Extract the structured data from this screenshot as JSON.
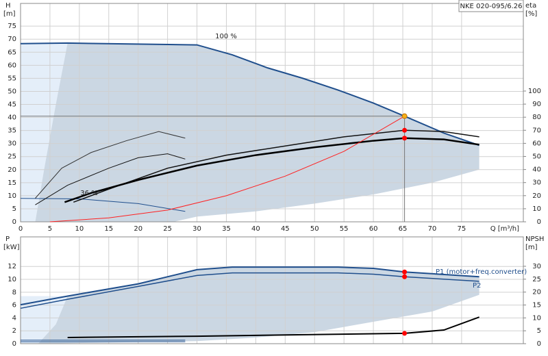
{
  "chart_data": [
    {
      "type": "line",
      "title": "NKE 020-095/6.26",
      "y_label": "H",
      "y_unit": "[m]",
      "y2_label": "eta",
      "y2_unit": "[%]",
      "x_label": "Q [m³/h]",
      "annotations": [
        "100 %",
        "36 %"
      ],
      "xlim": [
        0,
        85.5
      ],
      "xticks": [
        0,
        5,
        10,
        15,
        20,
        25,
        30,
        35,
        40,
        45,
        50,
        55,
        60,
        65,
        70,
        75
      ],
      "ylim": [
        0,
        83.7
      ],
      "yticks": [
        0,
        5,
        10,
        15,
        20,
        25,
        30,
        35,
        40,
        45,
        50,
        55,
        60,
        65,
        70,
        75
      ],
      "y2lim": [
        0,
        167
      ],
      "y2ticks": [
        0,
        10,
        20,
        30,
        40,
        50,
        60,
        70,
        80,
        90,
        100
      ],
      "grid": true,
      "series": [
        {
          "kind": "area",
          "color": "#e4eef9",
          "x": [
            0,
            0,
            8,
            6,
            4,
            2.5
          ],
          "values": [
            0,
            68.3,
            68.3,
            45,
            20,
            0
          ]
        },
        {
          "kind": "area",
          "color": "#cbd7e3",
          "x": [
            2.5,
            4,
            6,
            8,
            30,
            36,
            42,
            48,
            54,
            60,
            65.3,
            72,
            78,
            78,
            70,
            60,
            50,
            40,
            30,
            26,
            2.5
          ],
          "values": [
            0,
            20,
            45,
            68.5,
            67.8,
            64,
            59,
            55,
            50.5,
            45.5,
            40.5,
            34,
            29.3,
            20,
            15,
            10.5,
            7,
            4,
            2,
            0,
            0
          ]
        },
        {
          "color": "#1f4e8c",
          "width": 2,
          "x": [
            0,
            8,
            30,
            36,
            42,
            48,
            54,
            60,
            65.3,
            72,
            78
          ],
          "values": [
            68.3,
            68.5,
            67.8,
            64,
            59,
            55,
            50.5,
            45.5,
            40.5,
            34,
            29.3
          ]
        },
        {
          "color": "#1f4e8c",
          "width": 1,
          "x": [
            0,
            10,
            20,
            28
          ],
          "values": [
            9,
            8.8,
            7,
            4
          ]
        },
        {
          "color": "#333333",
          "width": 1,
          "axis": "y2",
          "x": [
            2.5,
            7,
            12,
            18,
            23.5,
            28
          ],
          "values": [
            18,
            41,
            53,
            62,
            69,
            64
          ]
        },
        {
          "color": "#111111",
          "width": 1,
          "axis": "y2",
          "x": [
            2.5,
            8,
            15,
            20,
            25,
            28
          ],
          "values": [
            13,
            28,
            41,
            49,
            52,
            48
          ]
        },
        {
          "color": "#111111",
          "width": 1.5,
          "axis": "y2",
          "x": [
            9,
            15,
            25,
            35,
            45,
            55,
            65.3,
            72,
            78
          ],
          "values": [
            15,
            25,
            41,
            51,
            58,
            65,
            70,
            69,
            65
          ]
        },
        {
          "color": "#000000",
          "width": 2.5,
          "axis": "y2",
          "x": [
            7.5,
            12,
            20,
            30,
            40,
            50,
            60,
            65.3,
            72,
            78
          ],
          "values": [
            15,
            22,
            32,
            43,
            51,
            57,
            62,
            64,
            63,
            59
          ]
        },
        {
          "color": "#ff2020",
          "width": 1,
          "x": [
            5,
            15,
            25,
            35,
            45,
            55,
            65.3
          ],
          "values": [
            0,
            1.5,
            4.5,
            10,
            17.5,
            27,
            40.5
          ]
        },
        {
          "kind": "marker",
          "droplines": true,
          "color": "#f5b01a",
          "x": [
            65.3
          ],
          "values": [
            40.5
          ]
        },
        {
          "kind": "marker",
          "color": "#ff0000",
          "axis": "y2",
          "x": [
            65.3,
            65.3
          ],
          "values": [
            70,
            64
          ]
        }
      ]
    },
    {
      "type": "line",
      "y_label": "P",
      "y_unit": "[kW]",
      "y2_label": "NPSH",
      "y2_unit": "[m]",
      "annotations": [
        "P1 (motor+freq.converter)",
        "P2"
      ],
      "xlim": [
        0,
        85.5
      ],
      "ylim": [
        0,
        16.6
      ],
      "yticks": [
        0,
        2,
        4,
        6,
        8,
        10,
        12
      ],
      "y2lim": [
        0,
        41.4
      ],
      "y2ticks": [
        0,
        5,
        10,
        15,
        20,
        25,
        30
      ],
      "grid": true,
      "series": [
        {
          "kind": "area",
          "color": "#e4eef9",
          "x": [
            0,
            0,
            8,
            6,
            3
          ],
          "values": [
            0,
            7.4,
            7.4,
            3,
            0
          ]
        },
        {
          "kind": "area",
          "color": "#cbd7e3",
          "x": [
            3,
            6,
            8,
            20,
            30,
            36,
            54,
            60,
            65.3,
            78,
            78,
            70,
            60,
            50,
            40,
            30,
            3
          ],
          "values": [
            0,
            3,
            7.4,
            9.3,
            11.5,
            11.9,
            11.9,
            11.7,
            11.15,
            10.4,
            7.6,
            5,
            3.4,
            1.8,
            0.95,
            0.4,
            0
          ]
        },
        {
          "color": "#1f4e8c",
          "width": 2,
          "x": [
            0,
            8,
            20,
            30,
            36,
            54,
            60,
            65.3,
            78
          ],
          "values": [
            6.05,
            7.4,
            9.3,
            11.5,
            11.9,
            11.9,
            11.7,
            11.15,
            10.4
          ]
        },
        {
          "color": "#1f4e8c",
          "width": 1.5,
          "x": [
            0,
            8,
            20,
            30,
            36,
            54,
            60,
            65.3,
            78
          ],
          "values": [
            5.5,
            6.9,
            8.9,
            10.6,
            11,
            11,
            10.8,
            10.4,
            9.7
          ]
        },
        {
          "color": "#1f4e8c",
          "width": 1,
          "x": [
            0,
            28
          ],
          "values": [
            0.55,
            0.55
          ]
        },
        {
          "color": "#1f4e8c",
          "width": 1,
          "x": [
            0,
            28
          ],
          "values": [
            0.3,
            0.3
          ]
        },
        {
          "color": "#000000",
          "width": 2,
          "axis": "y2",
          "x": [
            8,
            30,
            45,
            65.3,
            72,
            78
          ],
          "values": [
            2.4,
            2.9,
            3.4,
            4.0,
            5.3,
            10.3
          ]
        },
        {
          "kind": "marker",
          "color": "#ff0000",
          "x": [
            65.3,
            65.3
          ],
          "values": [
            11.15,
            10.4
          ]
        },
        {
          "kind": "marker",
          "color": "#ff0000",
          "axis": "y2",
          "x": [
            65.3
          ],
          "values": [
            4.0
          ]
        }
      ]
    }
  ]
}
